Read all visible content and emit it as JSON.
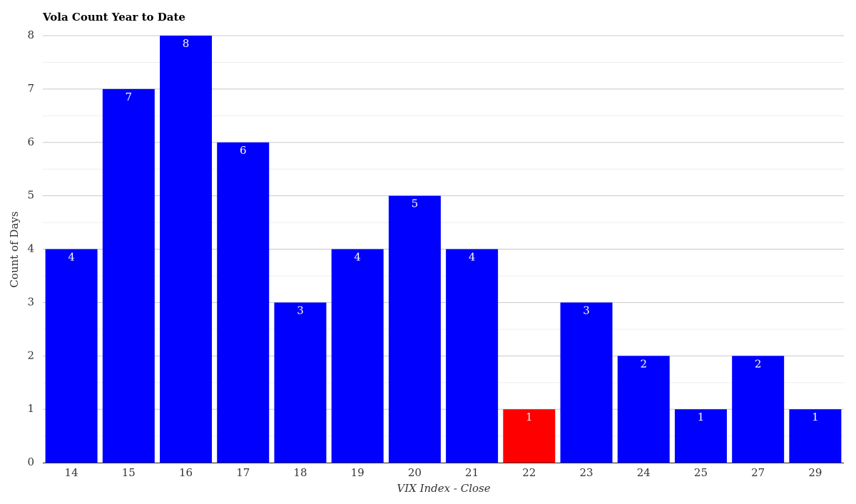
{
  "chart_data": {
    "type": "bar",
    "title": "Vola Count Year to Date",
    "x_label": "VIX Index - Close",
    "y_label": "Count of Days",
    "categories": [
      "14",
      "15",
      "16",
      "17",
      "18",
      "19",
      "20",
      "21",
      "22",
      "23",
      "24",
      "25",
      "27",
      "29"
    ],
    "values": [
      4,
      7,
      8,
      6,
      3,
      4,
      5,
      4,
      1,
      3,
      2,
      1,
      2,
      1
    ],
    "colors": [
      "#0000ff",
      "#0000ff",
      "#0000ff",
      "#0000ff",
      "#0000ff",
      "#0000ff",
      "#0000ff",
      "#0000ff",
      "#ff0000",
      "#0000ff",
      "#0000ff",
      "#0000ff",
      "#0000ff",
      "#0000ff"
    ],
    "ylim": [
      0,
      8
    ],
    "yticks": [
      0,
      1,
      2,
      3,
      4,
      5,
      6,
      7,
      8
    ],
    "minor_yticks": [
      0.5,
      1.5,
      2.5,
      3.5,
      4.5,
      5.5,
      6.5,
      7.5
    ],
    "grid": true
  }
}
